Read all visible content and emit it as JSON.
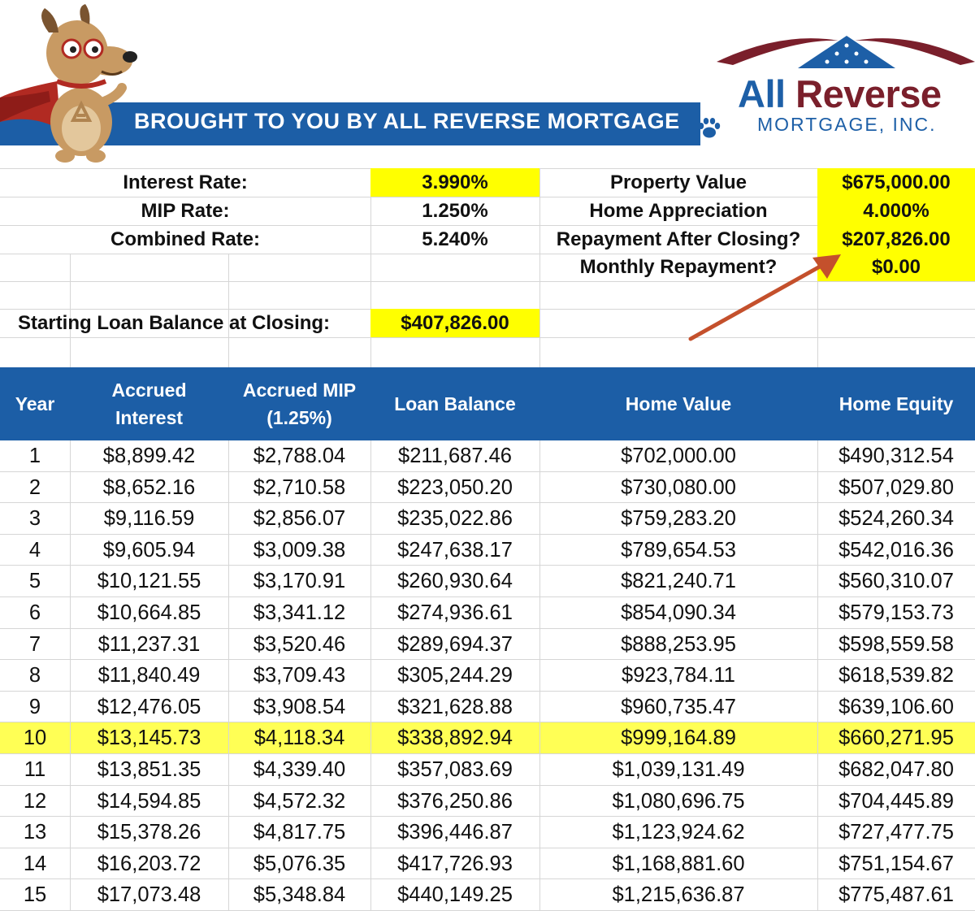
{
  "header": {
    "banner_text": "BROUGHT TO YOU BY ALL REVERSE MORTGAGE",
    "logo_word_1": "All",
    "logo_word_2": "Reverse",
    "logo_sub": "MORTGAGE, INC.",
    "brand_colors": {
      "blue": "#1c5ea6",
      "maroon": "#7a1f2b"
    }
  },
  "summary": {
    "interest_rate_label": "Interest Rate:",
    "interest_rate_value": "3.990%",
    "mip_rate_label": "MIP Rate:",
    "mip_rate_value": "1.250%",
    "combined_rate_label": "Combined Rate:",
    "combined_rate_value": "5.240%",
    "property_value_label": "Property Value",
    "property_value_value": "$675,000.00",
    "home_appreciation_label": "Home Appreciation",
    "home_appreciation_value": "4.000%",
    "repayment_label": "Repayment After Closing?",
    "repayment_value": "$207,826.00",
    "monthly_repayment_label": "Monthly Repayment?",
    "monthly_repayment_value": "$0.00",
    "starting_balance_label": "Starting Loan Balance at Closing:",
    "starting_balance_value": "$407,826.00",
    "highlight_color": "#ffff00"
  },
  "table": {
    "headers": [
      "Year",
      "Accrued\nInterest",
      "Accrued MIP\n(1.25%)",
      "Loan Balance",
      "Home Value",
      "Home Equity"
    ],
    "highlighted_year": "10",
    "rows": [
      [
        "1",
        "$8,899.42",
        "$2,788.04",
        "$211,687.46",
        "$702,000.00",
        "$490,312.54"
      ],
      [
        "2",
        "$8,652.16",
        "$2,710.58",
        "$223,050.20",
        "$730,080.00",
        "$507,029.80"
      ],
      [
        "3",
        "$9,116.59",
        "$2,856.07",
        "$235,022.86",
        "$759,283.20",
        "$524,260.34"
      ],
      [
        "4",
        "$9,605.94",
        "$3,009.38",
        "$247,638.17",
        "$789,654.53",
        "$542,016.36"
      ],
      [
        "5",
        "$10,121.55",
        "$3,170.91",
        "$260,930.64",
        "$821,240.71",
        "$560,310.07"
      ],
      [
        "6",
        "$10,664.85",
        "$3,341.12",
        "$274,936.61",
        "$854,090.34",
        "$579,153.73"
      ],
      [
        "7",
        "$11,237.31",
        "$3,520.46",
        "$289,694.37",
        "$888,253.95",
        "$598,559.58"
      ],
      [
        "8",
        "$11,840.49",
        "$3,709.43",
        "$305,244.29",
        "$923,784.11",
        "$618,539.82"
      ],
      [
        "9",
        "$12,476.05",
        "$3,908.54",
        "$321,628.88",
        "$960,735.47",
        "$639,106.60"
      ],
      [
        "10",
        "$13,145.73",
        "$4,118.34",
        "$338,892.94",
        "$999,164.89",
        "$660,271.95"
      ],
      [
        "11",
        "$13,851.35",
        "$4,339.40",
        "$357,083.69",
        "$1,039,131.49",
        "$682,047.80"
      ],
      [
        "12",
        "$14,594.85",
        "$4,572.32",
        "$376,250.86",
        "$1,080,696.75",
        "$704,445.89"
      ],
      [
        "13",
        "$15,378.26",
        "$4,817.75",
        "$396,446.87",
        "$1,123,924.62",
        "$727,477.75"
      ],
      [
        "14",
        "$16,203.72",
        "$5,076.35",
        "$417,726.93",
        "$1,168,881.60",
        "$751,154.67"
      ],
      [
        "15",
        "$17,073.48",
        "$5,348.84",
        "$440,149.25",
        "$1,215,636.87",
        "$775,487.61"
      ]
    ]
  }
}
